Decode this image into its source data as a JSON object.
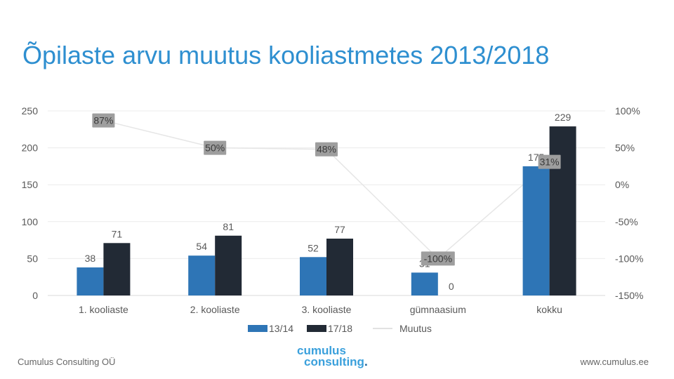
{
  "title": "Õpilaste arvu muutus kooliastmetes 2013/2018",
  "footer": {
    "left": "Cumulus Consulting OÜ",
    "right": "www.cumulus.ee",
    "logo_line1": "cumulus",
    "logo_line2": "consulting",
    "logo_dot": "."
  },
  "chart_data": {
    "type": "bar",
    "categories": [
      "1. kooliaste",
      "2. kooliaste",
      "3. kooliaste",
      "gümnaasium",
      "kokku"
    ],
    "series": [
      {
        "name": "13/14",
        "type": "bar",
        "axis": "left",
        "color": "#2e75b6",
        "values": [
          38,
          54,
          52,
          31,
          175
        ]
      },
      {
        "name": "17/18",
        "type": "bar",
        "axis": "left",
        "color": "#222a35",
        "values": [
          71,
          81,
          77,
          0,
          229
        ]
      },
      {
        "name": "Muutus",
        "type": "line",
        "axis": "right",
        "color": "#e6e6e6",
        "values": [
          87,
          50,
          48,
          -100,
          31
        ],
        "labels": [
          "87%",
          "50%",
          "48%",
          "-100%",
          "31%"
        ]
      }
    ],
    "y_left": {
      "min": 0,
      "max": 250,
      "ticks": [
        0,
        50,
        100,
        150,
        200,
        250
      ]
    },
    "y_right": {
      "min": -150,
      "max": 100,
      "ticks": [
        "-150%",
        "-100%",
        "-50%",
        "0%",
        "50%",
        "100%"
      ]
    },
    "grid": true,
    "legend": "bottom"
  }
}
